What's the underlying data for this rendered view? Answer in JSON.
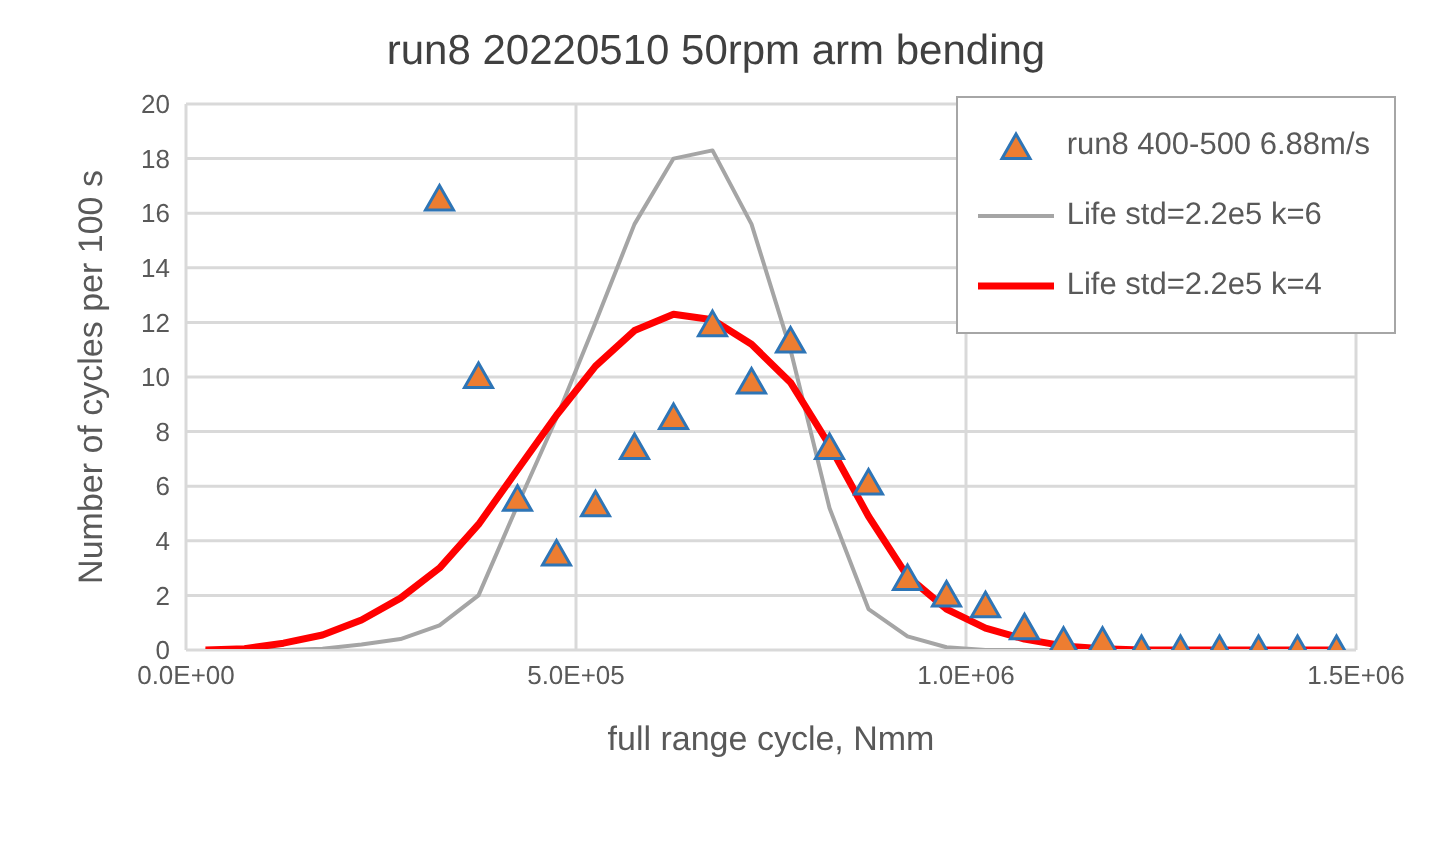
{
  "chart_data": {
    "type": "scatter",
    "title": "run8 20220510 50rpm arm bending",
    "xlabel": "full range cycle, Nmm",
    "ylabel": "Number of cycles per 100 s",
    "xlim": [
      0,
      1500000
    ],
    "xticks": [
      {
        "value": 0,
        "label": "0.0E+00"
      },
      {
        "value": 500000,
        "label": "5.0E+05"
      },
      {
        "value": 1000000,
        "label": "1.0E+06"
      },
      {
        "value": 1500000,
        "label": "1.5E+06"
      }
    ],
    "ylim": [
      0,
      20
    ],
    "yticks": [
      0,
      2,
      4,
      6,
      8,
      10,
      12,
      14,
      16,
      18,
      20
    ],
    "grid": true,
    "legend": "top right",
    "series": [
      {
        "name": "run8 400-500 6.88m/s",
        "marker": "triangle",
        "color": "#ed7d31",
        "x": [
          325000,
          375000,
          425000,
          475000,
          525000,
          575000,
          625000,
          675000,
          725000,
          775000,
          825000,
          875000,
          925000,
          975000,
          1025000,
          1075000,
          1125000,
          1175000,
          1225000,
          1275000,
          1325000,
          1375000,
          1425000,
          1475000
        ],
        "values": [
          16.5,
          10,
          5.5,
          3.5,
          5.3,
          7.4,
          8.5,
          11.9,
          9.8,
          11.3,
          7.4,
          6.1,
          2.6,
          2.0,
          1.6,
          0.8,
          0.3,
          0.3,
          0,
          0,
          0,
          0,
          0,
          0
        ]
      },
      {
        "name": "Life std=2.2e5 k=6",
        "type": "line",
        "marker": "none",
        "color": "#a5a5a5",
        "x": [
          25000,
          75000,
          125000,
          175000,
          225000,
          275000,
          325000,
          375000,
          425000,
          475000,
          525000,
          575000,
          625000,
          675000,
          725000,
          775000,
          825000,
          875000,
          925000,
          975000,
          1025000,
          1075000,
          1125000,
          1175000,
          1225000,
          1275000,
          1325000,
          1375000,
          1425000,
          1475000
        ],
        "values": [
          0,
          0,
          0,
          0.05,
          0.2,
          0.4,
          0.9,
          2.0,
          5.3,
          8.5,
          12.0,
          15.6,
          18.0,
          18.3,
          15.6,
          11.0,
          5.2,
          1.5,
          0.5,
          0.1,
          0,
          0,
          0,
          0,
          0,
          0,
          0,
          0,
          0,
          0
        ]
      },
      {
        "name": "Life std=2.2e5 k=4",
        "type": "line",
        "marker": "none",
        "color": "#ff0000",
        "x": [
          25000,
          75000,
          125000,
          175000,
          225000,
          275000,
          325000,
          375000,
          425000,
          475000,
          525000,
          575000,
          625000,
          675000,
          725000,
          775000,
          825000,
          875000,
          925000,
          975000,
          1025000,
          1075000,
          1125000,
          1175000,
          1225000,
          1275000,
          1325000,
          1375000,
          1425000,
          1475000
        ],
        "values": [
          0,
          0.05,
          0.25,
          0.55,
          1.1,
          1.9,
          3.0,
          4.6,
          6.6,
          8.6,
          10.4,
          11.7,
          12.3,
          12.1,
          11.2,
          9.8,
          7.5,
          4.9,
          2.7,
          1.5,
          0.8,
          0.4,
          0.15,
          0.05,
          0,
          0,
          0,
          0,
          0,
          0
        ]
      }
    ]
  }
}
